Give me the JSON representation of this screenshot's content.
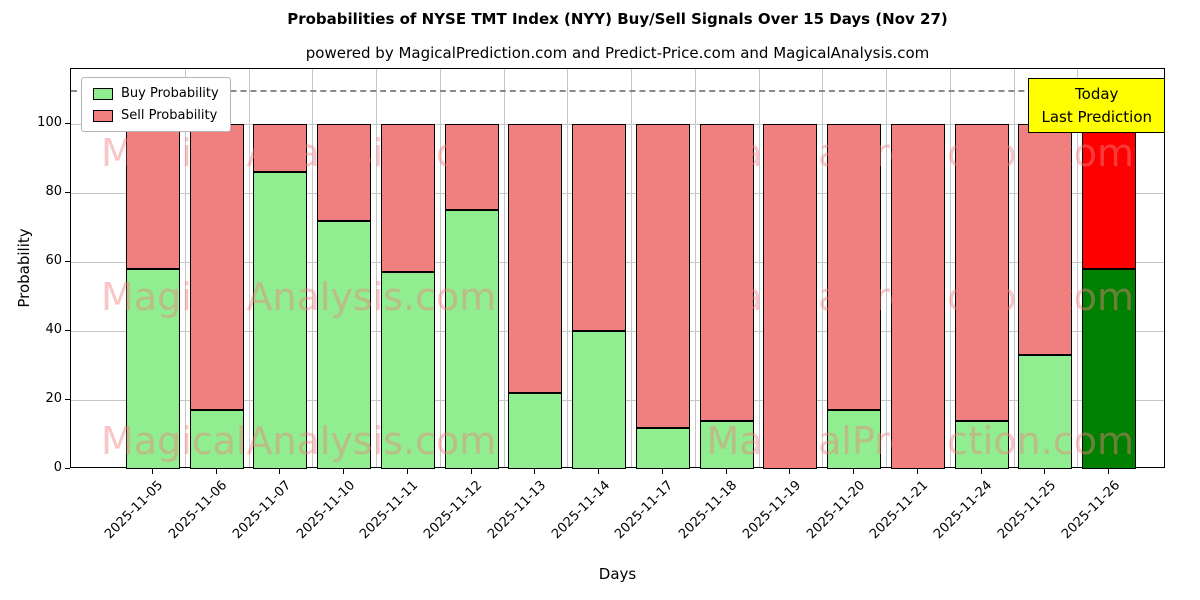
{
  "title": "Probabilities of NYSE TMT Index (NYY) Buy/Sell Signals Over 15 Days (Nov 27)",
  "subtitle": "powered by MagicalPrediction.com and Predict-Price.com and MagicalAnalysis.com",
  "legend": {
    "buy_label": "Buy Probability",
    "sell_label": "Sell Probability"
  },
  "annotation": {
    "line1": "Today",
    "line2": "Last Prediction",
    "bg": "#ffff00"
  },
  "watermarks": [
    "MagicalAnalysis.com",
    "MagicalPrediction.com"
  ],
  "colors": {
    "buy": "#90ee90",
    "sell": "#f08080",
    "buy_today": "#008000",
    "sell_today": "#ff0000",
    "grid": "#c6c6c6",
    "dashed_line": "#8a8a8a",
    "annotation_bg": "#ffff00",
    "watermark": "#f08080"
  },
  "chart_data": {
    "type": "bar",
    "stacked": true,
    "title": "Probabilities of NYSE TMT Index (NYY) Buy/Sell Signals Over 15 Days (Nov 27)",
    "xlabel": "Days",
    "ylabel": "Probability",
    "categories": [
      "2025-11-05",
      "2025-11-06",
      "2025-11-07",
      "2025-11-10",
      "2025-11-11",
      "2025-11-12",
      "2025-11-13",
      "2025-11-14",
      "2025-11-17",
      "2025-11-18",
      "2025-11-19",
      "2025-11-20",
      "2025-11-21",
      "2025-11-24",
      "2025-11-25",
      "2025-11-26"
    ],
    "series": [
      {
        "name": "Buy Probability",
        "color": "#90ee90",
        "color_today": "#008000",
        "values": [
          58,
          17,
          86,
          72,
          57,
          75,
          22,
          40,
          12,
          14,
          0,
          17,
          0,
          14,
          33,
          58
        ]
      },
      {
        "name": "Sell Probability",
        "color": "#f08080",
        "color_today": "#ff0000",
        "values": [
          42,
          83,
          14,
          28,
          43,
          25,
          78,
          60,
          88,
          86,
          100,
          83,
          100,
          86,
          67,
          42
        ]
      }
    ],
    "ylim": [
      0,
      116
    ],
    "yticks": [
      0,
      20,
      40,
      60,
      80,
      100
    ],
    "dashed_line_y": 110,
    "grid": true,
    "legend_position": "upper left"
  }
}
